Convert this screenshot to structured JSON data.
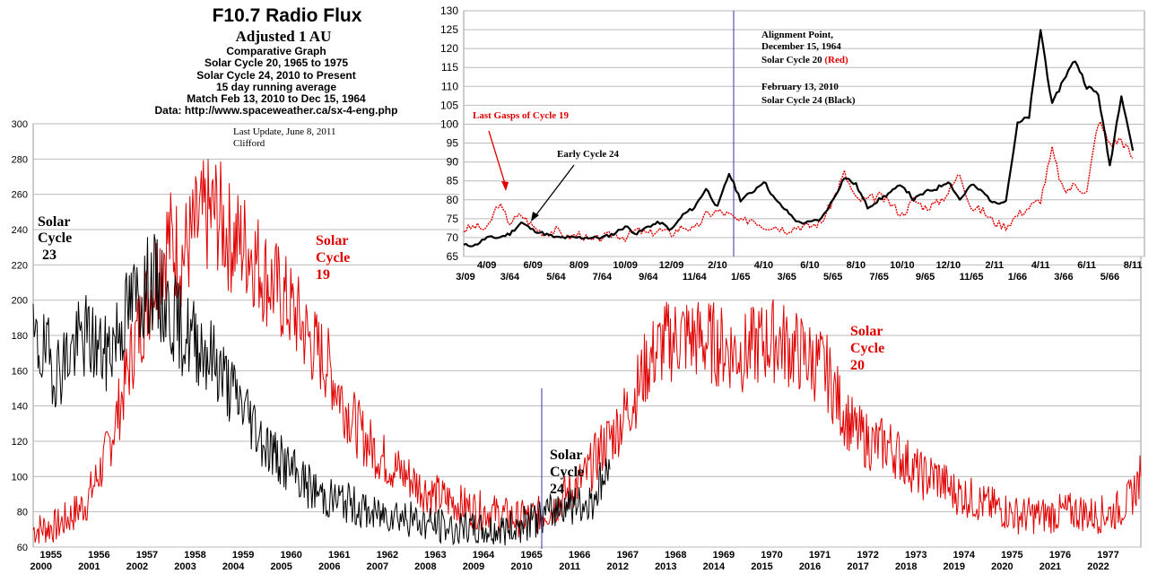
{
  "header": {
    "title": "F10.7 Radio Flux",
    "subtitle": "Adjusted 1 AU",
    "lines": [
      "Comparative Graph",
      "Solar Cycle 20, 1965 to 1975",
      "Solar Cycle 24, 2010 to Present",
      "15 day running average",
      "Match Feb 13, 2010 to Dec 15, 1964",
      "Data: http://www.spaceweather.ca/sx-4-eng.php"
    ],
    "update_line1": "Last Update, June 8, 2011",
    "update_line2": "Clifford"
  },
  "colors": {
    "cycle20": "#e00000",
    "cycle23_24": "#000000",
    "grid": "#bbbbbb",
    "marker": "#3333aa"
  },
  "chart_data": [
    {
      "type": "line",
      "name": "main",
      "ylim": [
        60,
        300
      ],
      "yticks": [
        60,
        80,
        100,
        120,
        140,
        160,
        180,
        200,
        220,
        240,
        260,
        280,
        300
      ],
      "x_top_labels": [
        "1955",
        "1956",
        "1957",
        "1958",
        "1959",
        "1960",
        "1961",
        "1962",
        "1963",
        "1964",
        "1965",
        "1966",
        "1967",
        "1968",
        "1969",
        "1970",
        "1971",
        "1972",
        "1973",
        "1974",
        "1975",
        "1976",
        "1977"
      ],
      "x_bottom_labels": [
        "2000",
        "2001",
        "2002",
        "2003",
        "2004",
        "2005",
        "2006",
        "2007",
        "2008",
        "2009",
        "2010",
        "2011",
        "2012",
        "2013",
        "2014",
        "2015",
        "2016",
        "2017",
        "2018",
        "2019",
        "2020",
        "2021",
        "2022"
      ],
      "labels": {
        "cycle23": [
          "Solar",
          "Cycle",
          "23"
        ],
        "cycle19": [
          "Solar",
          "Cycle",
          "19"
        ],
        "cycle24": [
          "Solar",
          "Cycle",
          "24"
        ],
        "cycle20": [
          "Solar",
          "Cycle",
          "20"
        ]
      },
      "series": [
        {
          "name": "Solar Cycle 20",
          "x": [
            1954.5,
            1955,
            1955.3,
            1955.6,
            1956,
            1956.3,
            1956.6,
            1957,
            1957.3,
            1957.6,
            1958,
            1958.3,
            1958.6,
            1959,
            1959.3,
            1959.6,
            1960,
            1960.3,
            1960.6,
            1961,
            1961.3,
            1961.6,
            1962,
            1962.3,
            1962.6,
            1963,
            1963.3,
            1963.6,
            1964,
            1964.3,
            1964.6,
            1965,
            1965.3,
            1965.6,
            1966,
            1966.3,
            1966.6,
            1967,
            1967.3,
            1967.6,
            1968,
            1968.3,
            1968.6,
            1969,
            1969.3,
            1969.6,
            1970,
            1970.3,
            1970.6,
            1971,
            1971.3,
            1971.6,
            1972,
            1972.3,
            1972.6,
            1973,
            1973.3,
            1973.6,
            1974,
            1974.3,
            1974.6,
            1975,
            1975.3,
            1975.6,
            1976,
            1976.3,
            1976.6,
            1977,
            1977.3,
            1977.55
          ],
          "values": [
            70,
            72,
            78,
            85,
            110,
            140,
            175,
            210,
            235,
            225,
            245,
            250,
            235,
            230,
            215,
            205,
            190,
            175,
            165,
            140,
            125,
            115,
            105,
            100,
            93,
            88,
            85,
            82,
            80,
            78,
            76,
            78,
            82,
            90,
            100,
            115,
            125,
            145,
            165,
            175,
            180,
            178,
            176,
            172,
            170,
            175,
            178,
            172,
            168,
            160,
            140,
            125,
            118,
            118,
            110,
            100,
            100,
            92,
            88,
            84,
            82,
            78,
            78,
            78,
            80,
            80,
            78,
            80,
            86,
            100
          ]
        },
        {
          "name": "Solar Cycle 23 / 24",
          "x": [
            1954.5,
            1954.8,
            1955,
            1955.3,
            1955.6,
            1956,
            1956.3,
            1956.6,
            1957,
            1957.3,
            1957.6,
            1958,
            1958.3,
            1958.6,
            1959,
            1959.3,
            1959.6,
            1960,
            1960.3,
            1960.6,
            1961,
            1961.3,
            1961.6,
            1962,
            1962.3,
            1962.6,
            1963,
            1963.3,
            1963.6,
            1964,
            1964.3,
            1964.6,
            1965,
            1965.3,
            1965.6,
            1965.9,
            1966.1,
            1966.3,
            1966.5
          ],
          "values": [
            175,
            168,
            160,
            172,
            180,
            168,
            185,
            200,
            210,
            195,
            182,
            175,
            165,
            150,
            135,
            120,
            110,
            100,
            93,
            88,
            86,
            82,
            78,
            80,
            76,
            74,
            72,
            70,
            70,
            69,
            70,
            72,
            76,
            80,
            86,
            82,
            86,
            96,
            104
          ]
        }
      ],
      "marker_year": 1965
    },
    {
      "type": "line",
      "name": "inset",
      "ylim": [
        65,
        130
      ],
      "yticks": [
        65,
        70,
        75,
        80,
        85,
        90,
        95,
        100,
        105,
        110,
        115,
        120,
        125,
        130
      ],
      "x_labels_row1": [
        "4/09",
        "6/09",
        "8/09",
        "10/09",
        "12/09",
        "2/10",
        "4/10",
        "6/10",
        "8/10",
        "10/10",
        "12/10",
        "2/11",
        "4/11",
        "6/11",
        "8/11"
      ],
      "x_labels_row2": [
        "3/09",
        "3/64",
        "5/64",
        "7/64",
        "9/64",
        "11/64",
        "1/65",
        "3/65",
        "5/65",
        "7/65",
        "9/65",
        "11/65",
        "1/66",
        "3/66",
        "5/66"
      ],
      "annotations": {
        "alignment": [
          "Alignment Point,",
          "December 15, 1964"
        ],
        "cycle20_prefix": "Solar Cycle 20 ",
        "cycle20_red": "(Red)",
        "cycle24_date": "February 13, 2010",
        "cycle24_line": "Solar Cycle 24 (Black)",
        "last_gasps": "Last Gasps of Cycle 19",
        "early24": "Early Cycle 24"
      },
      "series": [
        {
          "name": "Solar Cycle 20 (Red)",
          "x": [
            0,
            0.5,
            1,
            1.5,
            2,
            2.5,
            3,
            3.5,
            4,
            4.5,
            5,
            5.5,
            6,
            6.5,
            7,
            7.5,
            8,
            8.5,
            9,
            9.5,
            10,
            10.5,
            11,
            11.5,
            12,
            12.5,
            13,
            13.5,
            14,
            14.5,
            15,
            15.5,
            16,
            16.5,
            17,
            17.5,
            18,
            18.5,
            19,
            19.5,
            20,
            20.5,
            21,
            21.5,
            22,
            22.5,
            23,
            23.5,
            24,
            24.5,
            25,
            25.5,
            26,
            26.5,
            27,
            27.5,
            28,
            28.5,
            29
          ],
          "values": [
            72,
            73,
            72,
            79,
            74,
            76,
            73,
            71,
            72,
            70,
            71,
            69,
            70,
            71,
            70,
            72,
            71,
            72,
            71,
            73,
            72,
            76,
            77,
            76,
            74,
            75,
            73,
            73,
            72,
            73,
            73,
            74,
            80,
            87,
            80,
            80,
            81,
            79,
            76,
            80,
            78,
            79,
            82,
            87,
            78,
            77,
            74,
            73,
            76,
            78,
            80,
            93,
            82,
            84,
            82,
            101,
            95,
            96,
            91
          ]
        },
        {
          "name": "Solar Cycle 24 (Black)",
          "x": [
            0,
            0.5,
            1,
            1.5,
            2,
            2.5,
            3,
            3.5,
            4,
            4.5,
            5,
            5.5,
            6,
            6.5,
            7,
            7.5,
            8,
            8.5,
            9,
            9.5,
            10,
            10.5,
            11,
            11.5,
            12,
            12.5,
            13,
            13.5,
            14,
            14.5,
            15,
            15.5,
            16,
            16.5,
            17,
            17.5,
            18,
            18.5,
            19,
            19.5,
            20,
            20.5,
            21,
            21.5,
            22,
            22.5,
            23,
            23.5,
            24,
            24.5,
            25,
            25.5,
            26,
            26.5,
            27,
            27.5,
            28,
            28.5,
            29
          ],
          "values": [
            68,
            68,
            70,
            70,
            71,
            74,
            72,
            71,
            70,
            70,
            70,
            70,
            70,
            71,
            73,
            71,
            73,
            74,
            72,
            76,
            78,
            83,
            78,
            87,
            80,
            82,
            85,
            80,
            77,
            74,
            74,
            75,
            80,
            86,
            84,
            78,
            80,
            82,
            84,
            80,
            82,
            83,
            85,
            80,
            84,
            82,
            79,
            80,
            100,
            102,
            125,
            105,
            112,
            117,
            110,
            108,
            89,
            108,
            93
          ]
        }
      ]
    }
  ]
}
